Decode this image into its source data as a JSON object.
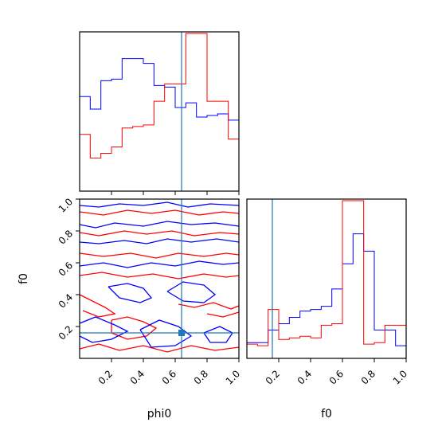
{
  "chart_data": {
    "type": "corner",
    "parameters": [
      "phi0",
      "f0"
    ],
    "xlabel": "phi0",
    "ylabel": "f0",
    "f0_xlabel": "f0",
    "axis_range": [
      0,
      1
    ],
    "tick_labels": [
      "0.2",
      "0.4",
      "0.6",
      "0.8",
      "1.0"
    ],
    "truth": {
      "phi0": 0.64,
      "f0": 0.16
    },
    "colors": {
      "series_a": "#0000ff",
      "series_b": "#ff0000",
      "truth": "#1f77b4",
      "axes": "#000000"
    },
    "hist_phi0": {
      "bins": 15,
      "series_a": [
        0.6,
        0.52,
        0.7,
        0.71,
        0.84,
        0.84,
        0.81,
        0.67,
        0.66,
        0.53,
        0.56,
        0.47,
        0.48,
        0.49,
        0.45
      ],
      "series_b": [
        0.36,
        0.21,
        0.24,
        0.28,
        0.4,
        0.41,
        0.42,
        0.57,
        0.68,
        0.68,
        1.0,
        1.0,
        0.57,
        0.57,
        0.33
      ]
    },
    "hist_f0": {
      "bins": 15,
      "series_a": [
        0.1,
        0.1,
        0.18,
        0.22,
        0.26,
        0.3,
        0.31,
        0.33,
        0.44,
        0.6,
        0.79,
        0.68,
        0.18,
        0.18,
        0.08
      ],
      "series_b": [
        0.09,
        0.08,
        0.31,
        0.12,
        0.13,
        0.14,
        0.13,
        0.21,
        0.22,
        1.0,
        1.0,
        0.09,
        0.1,
        0.21,
        0.21
      ]
    },
    "contours_2d": {
      "series_a": [
        [
          [
            0.0,
            0.96
          ],
          [
            0.12,
            0.95
          ],
          [
            0.25,
            0.97
          ],
          [
            0.4,
            0.96
          ],
          [
            0.55,
            0.98
          ],
          [
            0.68,
            0.95
          ],
          [
            0.82,
            0.97
          ],
          [
            1.0,
            0.96
          ]
        ],
        [
          [
            0.0,
            0.84
          ],
          [
            0.1,
            0.82
          ],
          [
            0.22,
            0.85
          ],
          [
            0.4,
            0.83
          ],
          [
            0.55,
            0.86
          ],
          [
            0.7,
            0.84
          ],
          [
            0.85,
            0.85
          ],
          [
            1.0,
            0.83
          ]
        ],
        [
          [
            0.0,
            0.73
          ],
          [
            0.12,
            0.72
          ],
          [
            0.28,
            0.74
          ],
          [
            0.42,
            0.72
          ],
          [
            0.55,
            0.75
          ],
          [
            0.7,
            0.73
          ],
          [
            0.86,
            0.75
          ],
          [
            1.0,
            0.73
          ]
        ],
        [
          [
            0.0,
            0.58
          ],
          [
            0.15,
            0.6
          ],
          [
            0.3,
            0.57
          ],
          [
            0.45,
            0.6
          ],
          [
            0.6,
            0.58
          ],
          [
            0.75,
            0.61
          ],
          [
            0.9,
            0.59
          ],
          [
            1.0,
            0.6
          ]
        ],
        [
          [
            0.18,
            0.45
          ],
          [
            0.3,
            0.47
          ],
          [
            0.4,
            0.44
          ],
          [
            0.45,
            0.38
          ],
          [
            0.38,
            0.35
          ],
          [
            0.25,
            0.38
          ],
          [
            0.18,
            0.45
          ]
        ],
        [
          [
            0.55,
            0.42
          ],
          [
            0.65,
            0.48
          ],
          [
            0.78,
            0.46
          ],
          [
            0.85,
            0.4
          ],
          [
            0.78,
            0.35
          ],
          [
            0.65,
            0.36
          ],
          [
            0.55,
            0.42
          ]
        ],
        [
          [
            0.0,
            0.22
          ],
          [
            0.1,
            0.26
          ],
          [
            0.22,
            0.21
          ],
          [
            0.3,
            0.17
          ],
          [
            0.2,
            0.12
          ],
          [
            0.08,
            0.1
          ],
          [
            0.0,
            0.14
          ]
        ],
        [
          [
            0.38,
            0.18
          ],
          [
            0.5,
            0.24
          ],
          [
            0.62,
            0.2
          ],
          [
            0.7,
            0.14
          ],
          [
            0.6,
            0.08
          ],
          [
            0.45,
            0.07
          ],
          [
            0.38,
            0.18
          ]
        ],
        [
          [
            0.78,
            0.16
          ],
          [
            0.88,
            0.2
          ],
          [
            0.96,
            0.16
          ],
          [
            0.92,
            0.1
          ],
          [
            0.82,
            0.1
          ],
          [
            0.78,
            0.16
          ]
        ]
      ],
      "series_b": [
        [
          [
            0.0,
            0.92
          ],
          [
            0.15,
            0.9
          ],
          [
            0.3,
            0.93
          ],
          [
            0.45,
            0.91
          ],
          [
            0.6,
            0.93
          ],
          [
            0.75,
            0.9
          ],
          [
            0.9,
            0.92
          ],
          [
            1.0,
            0.91
          ]
        ],
        [
          [
            0.0,
            0.79
          ],
          [
            0.12,
            0.77
          ],
          [
            0.28,
            0.8
          ],
          [
            0.42,
            0.78
          ],
          [
            0.58,
            0.8
          ],
          [
            0.72,
            0.77
          ],
          [
            0.88,
            0.79
          ],
          [
            1.0,
            0.78
          ]
        ],
        [
          [
            0.0,
            0.66
          ],
          [
            0.15,
            0.64
          ],
          [
            0.32,
            0.66
          ],
          [
            0.48,
            0.63
          ],
          [
            0.62,
            0.66
          ],
          [
            0.78,
            0.64
          ],
          [
            0.92,
            0.66
          ],
          [
            1.0,
            0.65
          ]
        ],
        [
          [
            0.0,
            0.52
          ],
          [
            0.14,
            0.54
          ],
          [
            0.3,
            0.51
          ],
          [
            0.46,
            0.53
          ],
          [
            0.62,
            0.5
          ],
          [
            0.78,
            0.53
          ],
          [
            0.92,
            0.51
          ],
          [
            1.0,
            0.52
          ]
        ],
        [
          [
            0.0,
            0.4
          ],
          [
            0.08,
            0.36
          ],
          [
            0.16,
            0.32
          ],
          [
            0.22,
            0.28
          ],
          [
            0.12,
            0.26
          ],
          [
            0.02,
            0.3
          ]
        ],
        [
          [
            0.62,
            0.34
          ],
          [
            0.72,
            0.32
          ],
          [
            0.84,
            0.35
          ],
          [
            0.95,
            0.31
          ],
          [
            1.0,
            0.33
          ]
        ],
        [
          [
            0.2,
            0.24
          ],
          [
            0.3,
            0.26
          ],
          [
            0.4,
            0.23
          ],
          [
            0.48,
            0.19
          ],
          [
            0.42,
            0.14
          ],
          [
            0.3,
            0.12
          ],
          [
            0.2,
            0.16
          ],
          [
            0.2,
            0.24
          ]
        ],
        [
          [
            0.0,
            0.06
          ],
          [
            0.12,
            0.09
          ],
          [
            0.25,
            0.05
          ],
          [
            0.4,
            0.08
          ],
          [
            0.55,
            0.04
          ],
          [
            0.7,
            0.08
          ],
          [
            0.85,
            0.05
          ],
          [
            1.0,
            0.07
          ]
        ],
        [
          [
            0.8,
            0.28
          ],
          [
            0.9,
            0.26
          ],
          [
            1.0,
            0.29
          ]
        ]
      ]
    }
  }
}
